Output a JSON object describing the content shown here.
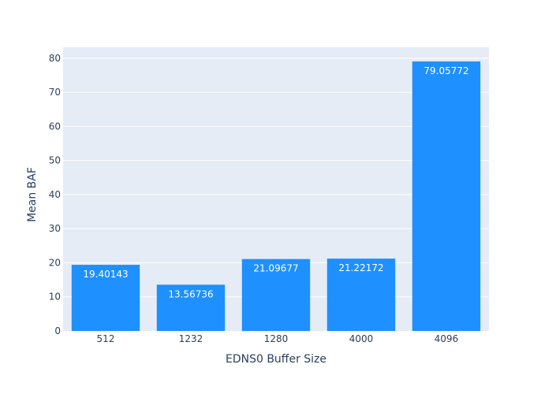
{
  "chart_data": {
    "type": "bar",
    "xlabel": "EDNS0 Buffer Size",
    "ylabel": "Mean BAF",
    "categories": [
      "512",
      "1232",
      "1280",
      "4000",
      "4096"
    ],
    "values": [
      19.40143,
      13.56736,
      21.09677,
      21.22172,
      79.05772
    ],
    "value_labels": [
      "19.40143",
      "13.56736",
      "21.09677",
      "21.22172",
      "79.05772"
    ],
    "ylim": [
      0,
      83.2
    ],
    "yticks": [
      0,
      10,
      20,
      30,
      40,
      50,
      60,
      70,
      80
    ],
    "ytick_labels": [
      "0",
      "10",
      "20",
      "30",
      "40",
      "50",
      "60",
      "70",
      "80"
    ],
    "grid": true,
    "legend": "none",
    "colors": {
      "bar": "#1e90ff",
      "plot_background": "#e5ecf6",
      "grid": "#ffffff",
      "text": "#2a3f5f"
    }
  }
}
